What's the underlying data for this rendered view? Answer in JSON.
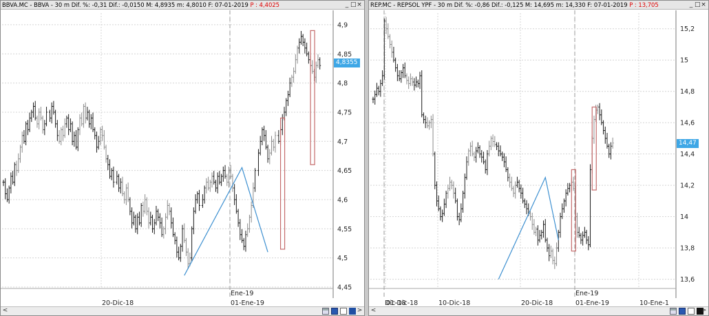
{
  "panes": [
    {
      "id": "left",
      "title": {
        "text": "BBVA.MC - BBVA -  30 m  Dif. %: -0,31  Dif.: -0,0150  M: 4,8935  m: 4,8010  F: 07-01-2019  ",
        "highlight": "P : 4,4025",
        "window_buttons": [
          "_",
          "□",
          "×"
        ]
      },
      "price_badge": "4,8355",
      "bottom": {
        "left_arrow": "<",
        "right_arrow": ">",
        "icons": [
          "print-icon",
          "save-icon",
          "link-icon",
          "square-icon"
        ]
      }
    },
    {
      "id": "right",
      "title": {
        "text": "REP.MC - REPSOL YPF -  30 m  Dif. %: -0,86  Dif.: -0,125  M: 14,695  m: 14,330  F: 07-01-2019  ",
        "highlight": "P : 13,705",
        "window_buttons": [
          "_",
          "□",
          "×"
        ]
      },
      "price_badge": "14,47",
      "bottom": {
        "left_arrow": "<",
        "right_arrow": ">",
        "icons": [
          "print-icon",
          "save-icon",
          "link-icon",
          "square-icon"
        ]
      }
    }
  ],
  "colors": {
    "badge": "#3ea7e6",
    "trendline": "#3c8fd0",
    "box": "#c46a6a",
    "grid": "#d4d4d4",
    "highlight": "#e00000"
  },
  "chart_data": [
    {
      "type": "bar",
      "title": "BBVA.MC - BBVA - 30 m",
      "ylim": [
        4.45,
        4.92
      ],
      "y_ticks": [
        "4,9",
        "4,85",
        "4,8",
        "4,75",
        "4,7",
        "4,65",
        "4,6",
        "4,55",
        "4,5",
        "4,45"
      ],
      "y_tick_values": [
        4.9,
        4.85,
        4.8,
        4.75,
        4.7,
        4.65,
        4.6,
        4.55,
        4.5,
        4.45
      ],
      "x_labels": [
        "20-Dic-18",
        "01-Ene-19"
      ],
      "x_markers": [
        "Ene-19"
      ],
      "series": [
        {
          "name": "BBVA",
          "close": [
            4.63,
            4.61,
            4.6,
            4.62,
            4.64,
            4.63,
            4.66,
            4.65,
            4.67,
            4.69,
            4.71,
            4.7,
            4.73,
            4.72,
            4.74,
            4.75,
            4.76,
            4.74,
            4.73,
            4.75,
            4.74,
            4.72,
            4.73,
            4.75,
            4.74,
            4.76,
            4.75,
            4.73,
            4.71,
            4.7,
            4.72,
            4.71,
            4.73,
            4.74,
            4.72,
            4.73,
            4.7,
            4.71,
            4.69,
            4.72,
            4.74,
            4.73,
            4.76,
            4.74,
            4.75,
            4.73,
            4.74,
            4.72,
            4.71,
            4.69,
            4.7,
            4.72,
            4.71,
            4.69,
            4.67,
            4.66,
            4.64,
            4.65,
            4.63,
            4.64,
            4.62,
            4.63,
            4.61,
            4.6,
            4.62,
            4.6,
            4.58,
            4.56,
            4.57,
            4.55,
            4.57,
            4.56,
            4.59,
            4.58,
            4.6,
            4.58,
            4.56,
            4.57,
            4.55,
            4.56,
            4.58,
            4.57,
            4.56,
            4.54,
            4.55,
            4.57,
            4.59,
            4.58,
            4.56,
            4.54,
            4.53,
            4.51,
            4.5,
            4.52,
            4.55,
            4.53,
            4.51,
            4.49,
            4.5,
            4.55,
            4.58,
            4.6,
            4.61,
            4.59,
            4.6,
            4.62,
            4.63,
            4.62,
            4.63,
            4.64,
            4.63,
            4.62,
            4.64,
            4.63,
            4.64,
            4.65,
            4.64,
            4.63,
            4.65,
            4.64,
            4.62,
            4.6,
            4.58,
            4.56,
            4.54,
            4.53,
            4.52,
            4.54,
            4.55,
            4.57,
            4.59,
            4.62,
            4.65,
            4.68,
            4.7,
            4.72,
            4.71,
            4.69,
            4.67,
            4.68,
            4.7,
            4.69,
            4.71,
            4.7,
            4.72,
            4.74,
            4.75,
            4.77,
            4.78,
            4.8,
            4.81,
            4.82,
            4.84,
            4.86,
            4.87,
            4.88,
            4.87,
            4.86,
            4.85,
            4.84,
            4.83,
            4.82,
            4.81,
            4.83,
            4.84,
            4.83
          ],
          "gap_after": [
            23,
            58,
            103,
            132,
            142
          ]
        }
      ],
      "trendline": [
        [
          95,
          4.47
        ],
        [
          125,
          4.655
        ],
        [
          138,
          4.51
        ]
      ],
      "boxes": [
        {
          "from_index": 144,
          "high": 4.74,
          "low": 4.515
        },
        {
          "from_index": 160,
          "high": 4.89,
          "low": 4.66
        }
      ],
      "last_price": 4.8355
    },
    {
      "type": "bar",
      "title": "REP.MC - REPSOL YPF - 30 m",
      "ylim": [
        13.55,
        15.3
      ],
      "y_ticks": [
        "15,2",
        "15",
        "14,8",
        "14,6",
        "14,4",
        "14,2",
        "14",
        "13,8",
        "13,6"
      ],
      "y_tick_values": [
        15.2,
        15.0,
        14.8,
        14.6,
        14.4,
        14.2,
        14.0,
        13.8,
        13.6
      ],
      "x_labels": [
        "Dic-18",
        "01-Dic-18",
        "10-Dic-18",
        "20-Dic-18",
        "01-Ene-19",
        "10-Ene-1"
      ],
      "x_markers": [
        "Ene-19"
      ],
      "series": [
        {
          "name": "REPSOL YPF",
          "close": [
            14.75,
            14.78,
            14.82,
            14.8,
            14.85,
            14.9,
            15.25,
            15.2,
            15.15,
            15.1,
            15.05,
            15.0,
            14.95,
            14.9,
            14.88,
            14.92,
            14.95,
            14.9,
            14.87,
            14.85,
            14.88,
            14.86,
            14.84,
            14.86,
            14.85,
            14.9,
            14.65,
            14.62,
            14.6,
            14.58,
            14.6,
            14.62,
            14.4,
            14.2,
            14.1,
            14.05,
            14.0,
            14.02,
            14.08,
            14.15,
            14.18,
            14.22,
            14.2,
            14.15,
            14.1,
            14.0,
            13.98,
            14.05,
            14.15,
            14.25,
            14.35,
            14.42,
            14.45,
            14.4,
            14.38,
            14.42,
            14.44,
            14.4,
            14.38,
            14.35,
            14.3,
            14.4,
            14.45,
            14.5,
            14.48,
            14.46,
            14.45,
            14.42,
            14.4,
            14.38,
            14.35,
            14.3,
            14.25,
            14.22,
            14.18,
            14.15,
            14.2,
            14.22,
            14.18,
            14.15,
            14.1,
            14.08,
            14.05,
            14.02,
            14.0,
            13.95,
            13.9,
            13.92,
            13.85,
            13.88,
            13.9,
            13.95,
            13.85,
            13.8,
            13.75,
            13.78,
            13.72,
            13.7,
            13.8,
            13.9,
            14.0,
            14.05,
            14.1,
            14.15,
            14.18,
            14.2,
            14.22,
            14.18,
            14.0,
            13.9,
            13.88,
            13.85,
            13.88,
            13.9,
            13.85,
            13.82,
            14.3,
            14.5,
            14.62,
            14.68,
            14.7,
            14.65,
            14.6,
            14.55,
            14.5,
            14.45,
            14.4,
            14.45,
            14.47
          ]
        }
      ],
      "trendline": [
        [
          67,
          13.6
        ],
        [
          92,
          14.25
        ],
        [
          99,
          13.85
        ]
      ],
      "boxes": [
        {
          "from_index": 106,
          "high": 14.3,
          "low": 13.78
        },
        {
          "from_index": 117,
          "high": 14.7,
          "low": 14.17
        }
      ],
      "last_price": 14.47
    }
  ]
}
